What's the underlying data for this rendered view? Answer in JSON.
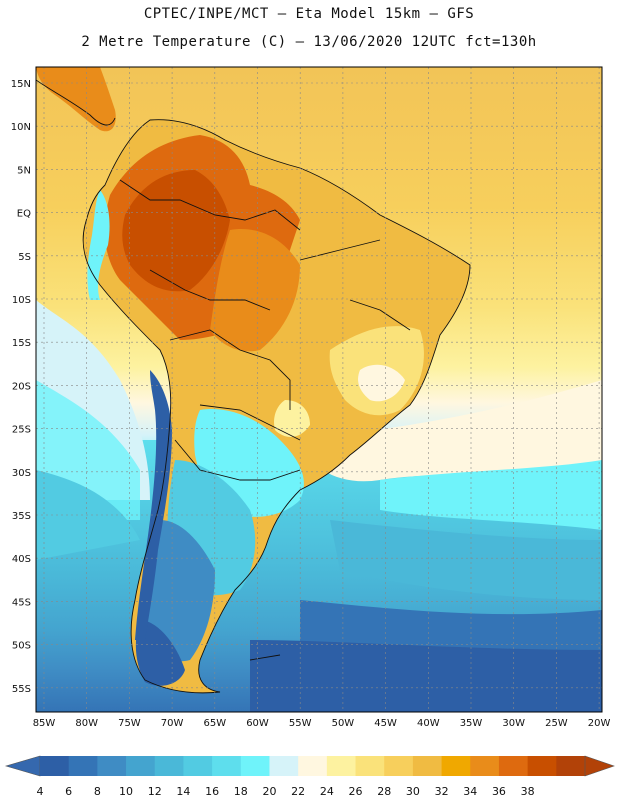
{
  "header": {
    "line1": "CPTEC/INPE/MCT –  Eta Model 15km – GFS",
    "line2": "2 Metre Temperature (C) – 13/06/2020 12UTC fct=130h"
  },
  "axes": {
    "lat_labels": [
      "15N",
      "10N",
      "5N",
      "EQ",
      "5S",
      "10S",
      "15S",
      "20S",
      "25S",
      "30S",
      "35S",
      "40S",
      "45S",
      "50S",
      "55S"
    ],
    "lon_labels": [
      "85W",
      "80W",
      "75W",
      "70W",
      "65W",
      "60W",
      "55W",
      "50W",
      "45W",
      "40W",
      "35W",
      "30W",
      "25W",
      "20W"
    ]
  },
  "colorbar": {
    "labels": [
      "4",
      "6",
      "8",
      "10",
      "12",
      "14",
      "16",
      "18",
      "20",
      "22",
      "24",
      "26",
      "28",
      "30",
      "32",
      "34",
      "36",
      "38"
    ],
    "colors": [
      "#2d5fa6",
      "#3474b6",
      "#3f8cc4",
      "#44a4cf",
      "#4ab8d8",
      "#52cbe2",
      "#5edeed",
      "#6ff3fa",
      "#d6f3f9",
      "#fff7e0",
      "#fdf2a0",
      "#fae27a",
      "#f7cf5c",
      "#f0bb42",
      "#f0a800",
      "#e98c1a",
      "#de6a0f",
      "#c84f00",
      "#b24208"
    ],
    "left_arrow_color": "#3568ae",
    "right_arrow_color": "#b24208"
  }
}
